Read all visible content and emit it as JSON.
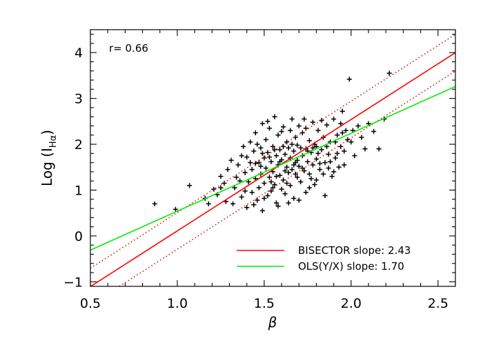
{
  "chart_data": {
    "type": "scatter",
    "xlabel": "β",
    "ylabel_main": "Log (I",
    "ylabel_sub": "Hα",
    "ylabel_close": ")",
    "xlim": [
      0.5,
      2.6
    ],
    "ylim": [
      -1.1,
      4.5
    ],
    "x_ticks": [
      0.5,
      1.0,
      1.5,
      2.0,
      2.5
    ],
    "x_tick_labels": [
      "0.5",
      "1.0",
      "1.5",
      "2.0",
      "2.5"
    ],
    "y_ticks": [
      -1,
      0,
      1,
      2,
      3,
      4
    ],
    "y_tick_labels": [
      "−1",
      "0",
      "1",
      "2",
      "3",
      "4"
    ],
    "annotation": "r= 0.66",
    "grid": false,
    "legend_position": "bottom-right",
    "lines": [
      {
        "name": "BISECTOR slope: 2.43",
        "slope": 2.43,
        "intercept": -2.32,
        "color": "#ff0000",
        "style": "solid"
      },
      {
        "name": "",
        "slope": 2.43,
        "intercept": -1.92,
        "color": "#cc0000",
        "style": "dotted"
      },
      {
        "name": "",
        "slope": 2.43,
        "intercept": -2.72,
        "color": "#cc0000",
        "style": "dotted"
      },
      {
        "name": "OLS(Y/X) slope: 1.70",
        "slope": 1.7,
        "intercept": -1.16,
        "color": "#00ee00",
        "style": "solid"
      }
    ],
    "scatter": {
      "marker": "+",
      "color": "#000000",
      "points": [
        [
          0.87,
          0.7
        ],
        [
          0.99,
          0.58
        ],
        [
          1.07,
          1.1
        ],
        [
          1.16,
          0.82
        ],
        [
          1.18,
          0.7
        ],
        [
          1.21,
          1.02
        ],
        [
          1.25,
          1.3
        ],
        [
          1.28,
          0.75
        ],
        [
          1.31,
          1.65
        ],
        [
          1.33,
          1.05
        ],
        [
          1.35,
          1.55
        ],
        [
          1.37,
          0.85
        ],
        [
          1.38,
          1.95
        ],
        [
          1.39,
          1.38
        ],
        [
          1.4,
          0.62
        ],
        [
          1.4,
          1.72
        ],
        [
          1.41,
          1.18
        ],
        [
          1.42,
          2.05
        ],
        [
          1.43,
          0.95
        ],
        [
          1.43,
          1.45
        ],
        [
          1.44,
          1.85
        ],
        [
          1.45,
          1.25
        ],
        [
          1.45,
          2.25
        ],
        [
          1.46,
          0.78
        ],
        [
          1.47,
          1.6
        ],
        [
          1.47,
          1.05
        ],
        [
          1.48,
          1.92
        ],
        [
          1.48,
          1.35
        ],
        [
          1.49,
          2.45
        ],
        [
          1.49,
          0.55
        ],
        [
          1.5,
          1.7
        ],
        [
          1.5,
          1.15
        ],
        [
          1.51,
          2.1
        ],
        [
          1.51,
          1.48
        ],
        [
          1.52,
          0.88
        ],
        [
          1.52,
          1.82
        ],
        [
          1.53,
          1.28
        ],
        [
          1.53,
          2.35
        ],
        [
          1.54,
          1.62
        ],
        [
          1.54,
          0.98
        ],
        [
          1.55,
          1.95
        ],
        [
          1.55,
          1.4
        ],
        [
          1.56,
          2.6
        ],
        [
          1.56,
          1.12
        ],
        [
          1.57,
          1.75
        ],
        [
          1.57,
          0.72
        ],
        [
          1.58,
          1.55
        ],
        [
          1.58,
          2.2
        ],
        [
          1.59,
          1.32
        ],
        [
          1.59,
          1.88
        ],
        [
          1.6,
          1.02
        ],
        [
          1.6,
          1.66
        ],
        [
          1.61,
          2.38
        ],
        [
          1.61,
          1.22
        ],
        [
          1.62,
          1.78
        ],
        [
          1.62,
          0.92
        ],
        [
          1.63,
          1.5
        ],
        [
          1.63,
          2.05
        ],
        [
          1.64,
          1.38
        ],
        [
          1.64,
          1.92
        ],
        [
          1.65,
          1.1
        ],
        [
          1.65,
          1.7
        ],
        [
          1.66,
          2.55
        ],
        [
          1.66,
          1.45
        ],
        [
          1.67,
          1.85
        ],
        [
          1.67,
          0.82
        ],
        [
          1.68,
          1.6
        ],
        [
          1.68,
          2.15
        ],
        [
          1.69,
          1.28
        ],
        [
          1.69,
          1.98
        ],
        [
          1.7,
          1.52
        ],
        [
          1.7,
          2.4
        ],
        [
          1.71,
          1.18
        ],
        [
          1.72,
          1.75
        ],
        [
          1.72,
          2.25
        ],
        [
          1.73,
          1.42
        ],
        [
          1.74,
          1.9
        ],
        [
          1.74,
          0.95
        ],
        [
          1.75,
          1.62
        ],
        [
          1.76,
          2.08
        ],
        [
          1.76,
          1.35
        ],
        [
          1.77,
          1.82
        ],
        [
          1.78,
          2.48
        ],
        [
          1.78,
          1.55
        ],
        [
          1.79,
          1.12
        ],
        [
          1.8,
          1.95
        ],
        [
          1.8,
          1.68
        ],
        [
          1.81,
          2.3
        ],
        [
          1.82,
          1.45
        ],
        [
          1.83,
          1.88
        ],
        [
          1.84,
          2.15
        ],
        [
          1.85,
          1.6
        ],
        [
          1.85,
          0.88
        ],
        [
          1.86,
          2.42
        ],
        [
          1.87,
          1.78
        ],
        [
          1.88,
          2.05
        ],
        [
          1.89,
          1.3
        ],
        [
          1.9,
          2.55
        ],
        [
          1.91,
          1.7
        ],
        [
          1.92,
          2.2
        ],
        [
          1.93,
          1.5
        ],
        [
          1.94,
          1.95
        ],
        [
          1.95,
          2.72
        ],
        [
          1.96,
          1.85
        ],
        [
          1.97,
          2.3
        ],
        [
          1.99,
          3.42
        ],
        [
          2.0,
          2.05
        ],
        [
          2.02,
          1.75
        ],
        [
          2.04,
          2.4
        ],
        [
          2.06,
          2.15
        ],
        [
          2.08,
          1.9
        ],
        [
          2.1,
          2.45
        ],
        [
          2.13,
          2.28
        ],
        [
          2.16,
          1.9
        ],
        [
          2.19,
          2.55
        ],
        [
          2.22,
          3.55
        ],
        [
          1.36,
          1.2
        ],
        [
          1.39,
          0.98
        ],
        [
          1.42,
          1.6
        ],
        [
          1.44,
          0.68
        ],
        [
          1.46,
          2.0
        ],
        [
          1.48,
          1.52
        ],
        [
          1.5,
          0.82
        ],
        [
          1.52,
          2.5
        ],
        [
          1.54,
          1.18
        ],
        [
          1.56,
          1.88
        ],
        [
          1.58,
          0.65
        ],
        [
          1.6,
          2.28
        ],
        [
          1.62,
          1.42
        ],
        [
          1.64,
          0.72
        ],
        [
          1.66,
          2.0
        ],
        [
          1.68,
          1.35
        ],
        [
          1.7,
          0.78
        ],
        [
          1.72,
          1.48
        ],
        [
          1.74,
          2.35
        ],
        [
          1.76,
          1.05
        ],
        [
          1.78,
          1.92
        ],
        [
          1.8,
          1.22
        ],
        [
          1.82,
          1.58
        ],
        [
          1.84,
          1.35
        ],
        [
          1.86,
          1.95
        ],
        [
          1.88,
          1.62
        ],
        [
          1.9,
          1.4
        ],
        [
          1.92,
          1.8
        ],
        [
          1.94,
          2.45
        ],
        [
          1.96,
          1.55
        ],
        [
          1.25,
          1.05
        ],
        [
          1.29,
          1.45
        ],
        [
          1.32,
          0.7
        ],
        [
          1.34,
          1.28
        ],
        [
          1.37,
          1.75
        ],
        [
          1.53,
          1.72
        ],
        [
          1.57,
          1.3
        ],
        [
          1.61,
          1.95
        ],
        [
          1.63,
          1.15
        ],
        [
          1.67,
          1.55
        ],
        [
          1.71,
          1.92
        ],
        [
          1.73,
          2.55
        ],
        [
          1.77,
          1.25
        ],
        [
          1.81,
          1.8
        ],
        [
          1.83,
          2.52
        ],
        [
          1.87,
          1.48
        ],
        [
          1.91,
          2.05
        ],
        [
          1.95,
          2.25
        ],
        [
          1.98,
          2.1
        ],
        [
          2.01,
          2.3
        ],
        [
          1.23,
          0.9
        ],
        [
          1.27,
          1.15
        ],
        [
          1.45,
          1.58
        ],
        [
          1.49,
          1.8
        ],
        [
          1.55,
          1.05
        ],
        [
          1.59,
          1.62
        ],
        [
          1.65,
          2.3
        ],
        [
          1.69,
          1.65
        ],
        [
          1.75,
          1.85
        ],
        [
          1.79,
          2.0
        ]
      ]
    }
  }
}
